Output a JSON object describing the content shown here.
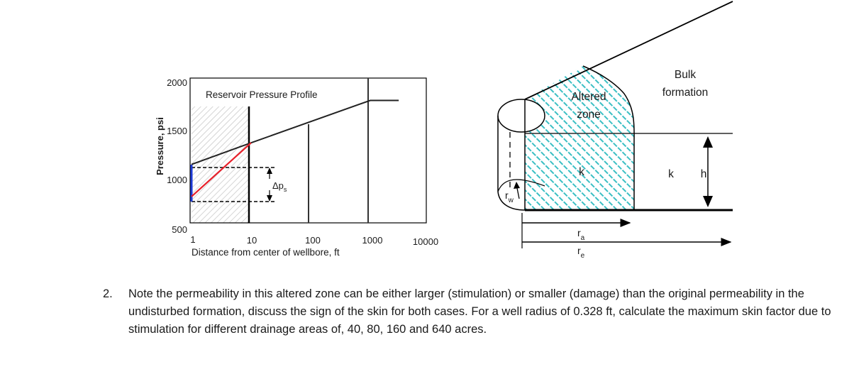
{
  "chart_data": {
    "type": "line",
    "title": "Reservoir Pressure Profile",
    "ylabel": "Pressure, psi",
    "xlabel": "Distance from center of wellbore, ft",
    "y_ticks": [
      "2000",
      "1500",
      "1000",
      "500"
    ],
    "x_ticks": [
      "1",
      "10",
      "100",
      "1000",
      "10000"
    ],
    "ylim": [
      500,
      2000
    ],
    "x_log": true,
    "series": [
      {
        "x": [
          1,
          10,
          1000,
          3000
        ],
        "y": [
          1120,
          1350,
          1800,
          1800
        ]
      },
      {
        "x": [
          1,
          10
        ],
        "y": [
          780,
          1350
        ]
      }
    ],
    "skin_annotation": "Δp",
    "skin_subscript": "s"
  },
  "schematic": {
    "rw_main": "r",
    "rw_sub": "w",
    "altered_line1": "Altered",
    "altered_line2": "zone",
    "bulk_line1": "Bulk",
    "bulk_line2": "formation",
    "k_altered": "k",
    "k_bulk": "k",
    "h_label": "h",
    "ra_main": "r",
    "ra_sub": "a",
    "re_main": "r",
    "re_sub": "e",
    "hatch_color": "#3bbfc4"
  },
  "question": {
    "number": "2.",
    "text": "Note the permeability in this altered zone can be either larger (stimulation) or smaller (damage) than the original permeability in the undisturbed formation, discuss the sign of the skin for both cases. For a well radius of 0.328 ft, calculate the maximum skin factor due to stimulation for different drainage areas of, 40, 80, 160 and 640 acres."
  }
}
